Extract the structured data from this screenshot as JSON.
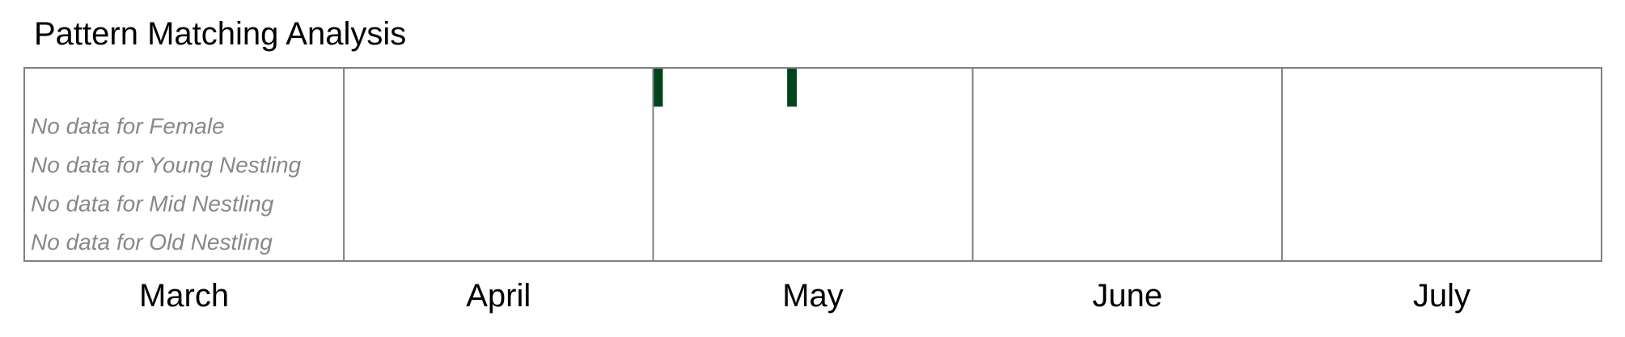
{
  "title": "Pattern Matching Analysis",
  "chart_data": {
    "type": "heatmap",
    "title": "Pattern Matching Analysis",
    "x_domain": [
      "2024-03-01",
      "2024-08-01"
    ],
    "months": [
      {
        "label": "March",
        "start": "2024-03-01"
      },
      {
        "label": "April",
        "start": "2024-04-01"
      },
      {
        "label": "May",
        "start": "2024-05-01"
      },
      {
        "label": "June",
        "start": "2024-06-01"
      },
      {
        "label": "July",
        "start": "2024-07-01"
      }
    ],
    "rows": [
      {
        "no_data_text": "",
        "detections": [
          {
            "date": "2024-05-01"
          },
          {
            "date": "2024-05-14"
          }
        ]
      },
      {
        "no_data_text": "No data for Female",
        "detections": []
      },
      {
        "no_data_text": "No data for Young Nestling",
        "detections": []
      },
      {
        "no_data_text": "No data for Mid Nestling",
        "detections": []
      },
      {
        "no_data_text": "No data for Old Nestling",
        "detections": []
      }
    ],
    "grid": true,
    "colors": {
      "detection": "#00441b",
      "no_data_text": "#888888",
      "frame": "#808080",
      "month_label": "#000000"
    }
  }
}
